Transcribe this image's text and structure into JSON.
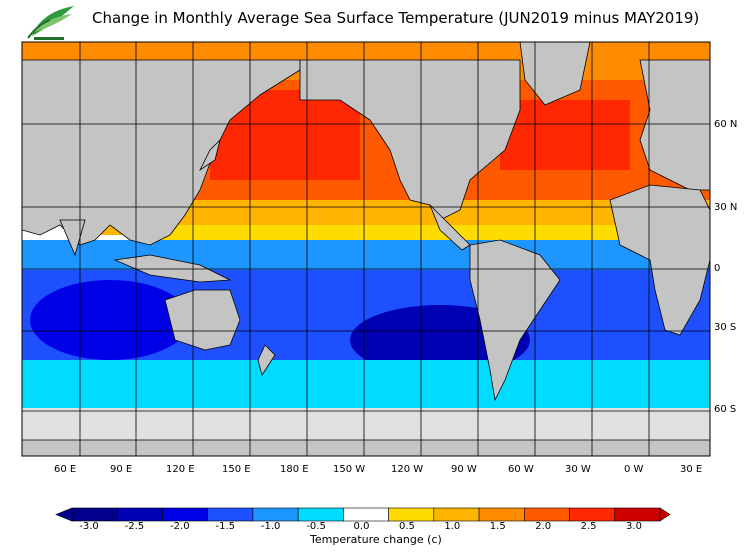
{
  "title": "Change in Monthly Average Sea Surface Temperature (JUN2019 minus MAY2019)",
  "logo": {
    "icon": "hko-leaf-logo"
  },
  "map": {
    "longitude_labels": [
      "60 E",
      "90 E",
      "120 E",
      "150 E",
      "180 E",
      "150 W",
      "120 W",
      "90 W",
      "60 W",
      "30 W",
      "0 W",
      "30 E"
    ],
    "latitude_labels": [
      "60 N",
      "30 N",
      "0",
      "30 S",
      "60 S"
    ],
    "colors": {
      "land": "#c4c4c4",
      "sea_ice": "#e0e0e0",
      "coastline": "#000000",
      "grid": "#000000"
    }
  },
  "colorbar": {
    "ticks": [
      "-3.0",
      "-2.5",
      "-2.0",
      "-1.5",
      "-1.0",
      "-0.5",
      "0.0",
      "0.5",
      "1.0",
      "1.5",
      "2.0",
      "2.5",
      "3.0"
    ],
    "label": "Temperature change  (c)",
    "colors": [
      "#00008b",
      "#0000b4",
      "#0000e6",
      "#1e50ff",
      "#1e96ff",
      "#00dcff",
      "#ffffff",
      "#ffdc00",
      "#ffb400",
      "#ff8c00",
      "#ff5a00",
      "#ff2800",
      "#cd0000"
    ]
  }
}
